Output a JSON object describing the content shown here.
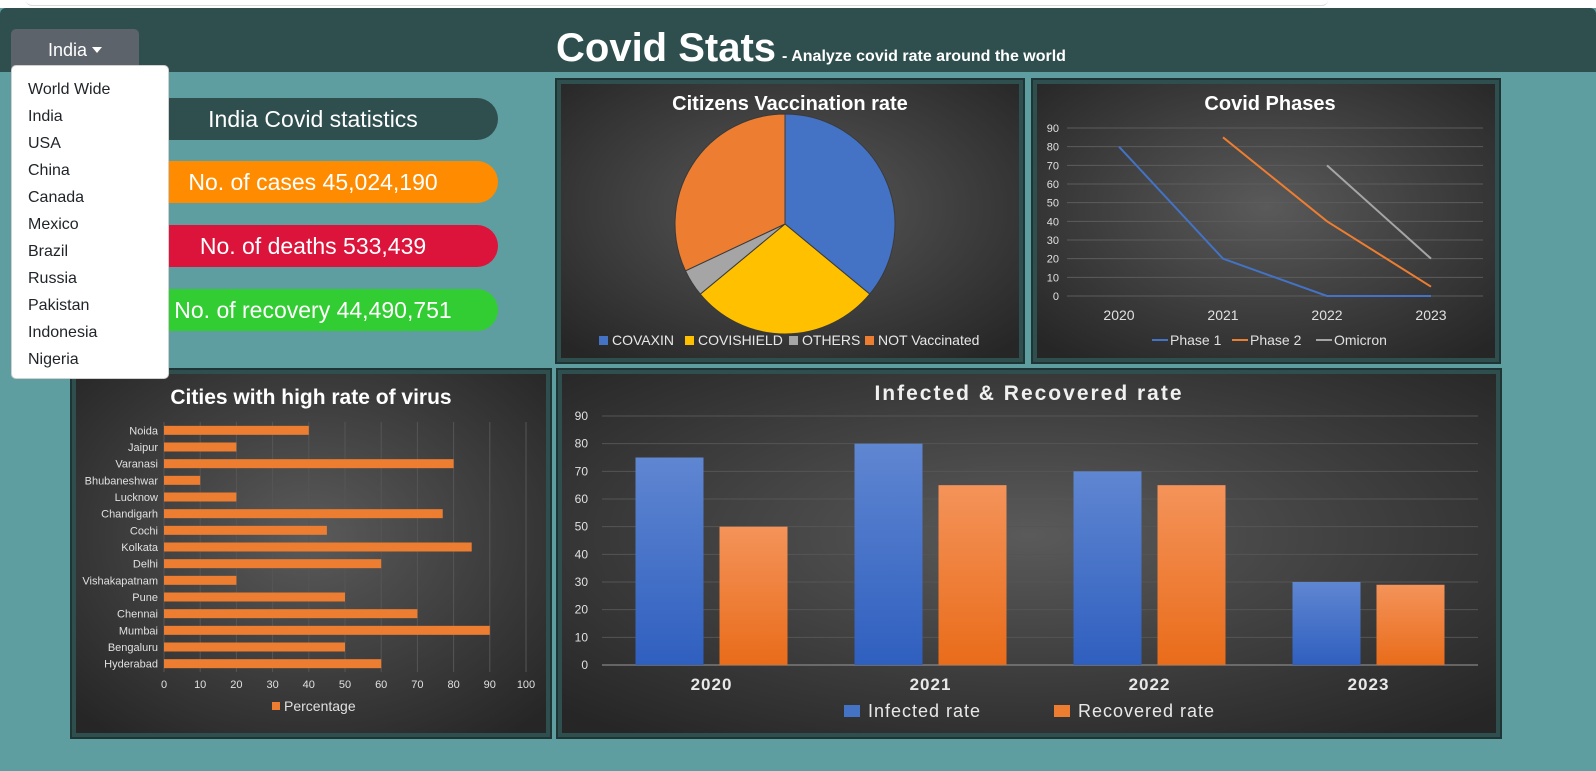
{
  "header": {
    "title": "Covid Stats",
    "subtitle": "- Analyze covid rate around the world",
    "dropdown_label": "India"
  },
  "dropdown": {
    "items": [
      "World Wide",
      "India",
      "USA",
      "China",
      "Canada",
      "Mexico",
      "Brazil",
      "Russia",
      "Pakistan",
      "Indonesia",
      "Nigeria"
    ]
  },
  "stats": {
    "title": "India Covid statistics",
    "cases": "No. of cases 45,024,190",
    "deaths": "No. of deaths 533,439",
    "recovery": "No. of recovery 44,490,751"
  },
  "colors": {
    "blue": "#4472c4",
    "orange": "#ed7d31",
    "yellow": "#ffc000",
    "gray": "#a5a5a5",
    "cases": "#ff8c00",
    "deaths": "#dc143c",
    "recovery": "#32cd32",
    "header": "#2f4f4f"
  },
  "chart_data": [
    {
      "type": "pie",
      "title": "Citizens Vaccination rate",
      "categories": [
        "COVAXIN",
        "COVISHIELD",
        "OTHERS",
        "NOT Vaccinated"
      ],
      "values": [
        36,
        28,
        4,
        32
      ],
      "legend": "bottom"
    },
    {
      "type": "line",
      "title": "Covid Phases",
      "categories": [
        "2020",
        "2021",
        "2022",
        "2023"
      ],
      "series": [
        {
          "name": "Phase 1",
          "values": [
            80,
            20,
            0,
            0
          ]
        },
        {
          "name": "Phase 2",
          "values": [
            null,
            85,
            40,
            5
          ]
        },
        {
          "name": "Omicron",
          "values": [
            null,
            null,
            70,
            20
          ]
        }
      ],
      "yticks": [
        "0",
        "10",
        "20",
        "30",
        "40",
        "50",
        "60",
        "70",
        "80",
        "90"
      ],
      "ylim": [
        0,
        90
      ],
      "grid": true,
      "legend": "bottom"
    },
    {
      "type": "bar",
      "orientation": "horizontal",
      "title": "Cities with high rate of virus",
      "categories": [
        "Noida",
        "Jaipur",
        "Varanasi",
        "Bhubaneshwar",
        "Lucknow",
        "Chandigarh",
        "Cochi",
        "Kolkata",
        "Delhi",
        "Vishakapatnam",
        "Pune",
        "Chennai",
        "Mumbai",
        "Bengaluru",
        "Hyderabad"
      ],
      "series": [
        {
          "name": "Percentage",
          "values": [
            40,
            20,
            80,
            10,
            20,
            77,
            45,
            85,
            60,
            20,
            50,
            70,
            90,
            50,
            60
          ]
        }
      ],
      "xticks": [
        "0",
        "10",
        "20",
        "30",
        "40",
        "50",
        "60",
        "70",
        "80",
        "90",
        "100"
      ],
      "xlim": [
        0,
        100
      ],
      "grid": true,
      "legend": "bottom"
    },
    {
      "type": "bar",
      "title": "Infected & Recovered rate",
      "categories": [
        "2020",
        "2021",
        "2022",
        "2023"
      ],
      "series": [
        {
          "name": "Infected rate",
          "values": [
            75,
            80,
            70,
            30
          ]
        },
        {
          "name": "Recovered rate",
          "values": [
            50,
            65,
            65,
            29
          ]
        }
      ],
      "yticks": [
        "0",
        "10",
        "20",
        "30",
        "40",
        "50",
        "60",
        "70",
        "80",
        "90"
      ],
      "ylim": [
        0,
        90
      ],
      "grid": true,
      "legend": "bottom"
    }
  ]
}
